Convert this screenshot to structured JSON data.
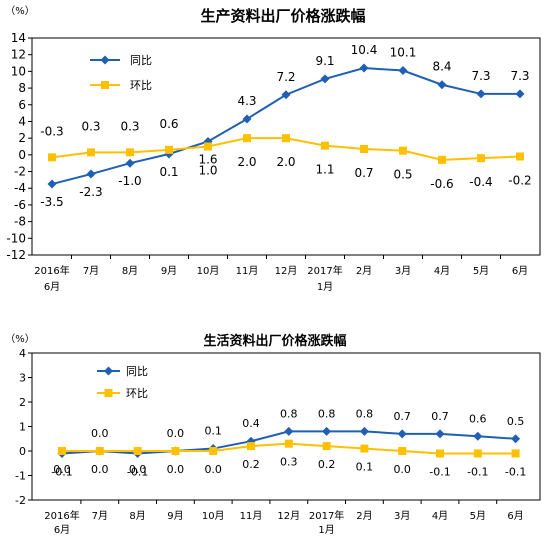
{
  "chart_data": [
    {
      "type": "line",
      "title": "生产资料出厂价格涨跌幅",
      "unit_label": "（%）",
      "categories": [
        "2016年6月",
        "7月",
        "8月",
        "9月",
        "10月",
        "11月",
        "12月",
        "2017年1月",
        "2月",
        "3月",
        "4月",
        "5月",
        "6月"
      ],
      "x_tick_labels": [
        [
          "2016年",
          "6月"
        ],
        [
          "7月"
        ],
        [
          "8月"
        ],
        [
          "9月"
        ],
        [
          "10月"
        ],
        [
          "11月"
        ],
        [
          "12月"
        ],
        [
          "2017年",
          "1月"
        ],
        [
          "2月"
        ],
        [
          "3月"
        ],
        [
          "4月"
        ],
        [
          "5月"
        ],
        [
          "6月"
        ]
      ],
      "ylim": [
        -12,
        14
      ],
      "yticks": [
        -12,
        -10,
        -8,
        -6,
        -4,
        -2,
        0,
        2,
        4,
        6,
        8,
        10,
        12,
        14
      ],
      "grid": false,
      "legend_position": "top-left",
      "series": [
        {
          "name": "同比",
          "color": "#1f5fb4",
          "marker": "diamond",
          "values": [
            -3.5,
            -2.3,
            -1.0,
            0.1,
            1.6,
            4.3,
            7.2,
            9.1,
            10.4,
            10.1,
            8.4,
            7.3,
            7.3
          ],
          "labels": [
            "-3.5",
            "-2.3",
            "-1.0",
            "0.1",
            "1.6",
            "4.3",
            "7.2",
            "9.1",
            "10.4",
            "10.1",
            "8.4",
            "7.3",
            "7.3"
          ]
        },
        {
          "name": "环比",
          "color": "#ffc000",
          "marker": "square",
          "values": [
            -0.3,
            0.3,
            0.3,
            0.6,
            1.0,
            2.0,
            2.0,
            1.1,
            0.7,
            0.5,
            -0.6,
            -0.4,
            -0.2
          ],
          "labels": [
            "-0.3",
            "0.3",
            "0.3",
            "0.6",
            "1.0",
            "2.0",
            "2.0",
            "1.1",
            "0.7",
            "0.5",
            "-0.6",
            "-0.4",
            "-0.2"
          ]
        }
      ]
    },
    {
      "type": "line",
      "title": "生活资料出厂价格涨跌幅",
      "unit_label": "（%）",
      "categories": [
        "2016年6月",
        "7月",
        "8月",
        "9月",
        "10月",
        "11月",
        "12月",
        "2017年1月",
        "2月",
        "3月",
        "4月",
        "5月",
        "6月"
      ],
      "x_tick_labels": [
        [
          "2016年",
          "6月"
        ],
        [
          "7月"
        ],
        [
          "8月"
        ],
        [
          "9月"
        ],
        [
          "10月"
        ],
        [
          "11月"
        ],
        [
          "12月"
        ],
        [
          "2017年",
          "1月"
        ],
        [
          "2月"
        ],
        [
          "3月"
        ],
        [
          "4月"
        ],
        [
          "5月"
        ],
        [
          "6月"
        ]
      ],
      "ylim": [
        -2,
        4
      ],
      "yticks": [
        -2,
        -1,
        0,
        1,
        2,
        3,
        4
      ],
      "grid": false,
      "legend_position": "top-left",
      "series": [
        {
          "name": "同比",
          "color": "#1f5fb4",
          "marker": "diamond",
          "values": [
            -0.1,
            0.0,
            -0.1,
            0.0,
            0.1,
            0.4,
            0.8,
            0.8,
            0.8,
            0.7,
            0.7,
            0.6,
            0.5
          ],
          "labels": [
            "-0.1",
            "0.0",
            "-0.1",
            "0.0",
            "0.1",
            "0.4",
            "0.8",
            "0.8",
            "0.8",
            "0.7",
            "0.7",
            "0.6",
            "0.5"
          ]
        },
        {
          "name": "环比",
          "color": "#ffc000",
          "marker": "square",
          "values": [
            0.0,
            0.0,
            0.0,
            0.0,
            0.0,
            0.2,
            0.3,
            0.2,
            0.1,
            0.0,
            -0.1,
            -0.1,
            -0.1
          ],
          "labels": [
            "0.0",
            "0.0",
            "0.0",
            "0.0",
            "0.0",
            "0.2",
            "0.3",
            "0.2",
            "0.1",
            "0.0",
            "-0.1",
            "-0.1",
            "-0.1"
          ]
        }
      ]
    }
  ]
}
